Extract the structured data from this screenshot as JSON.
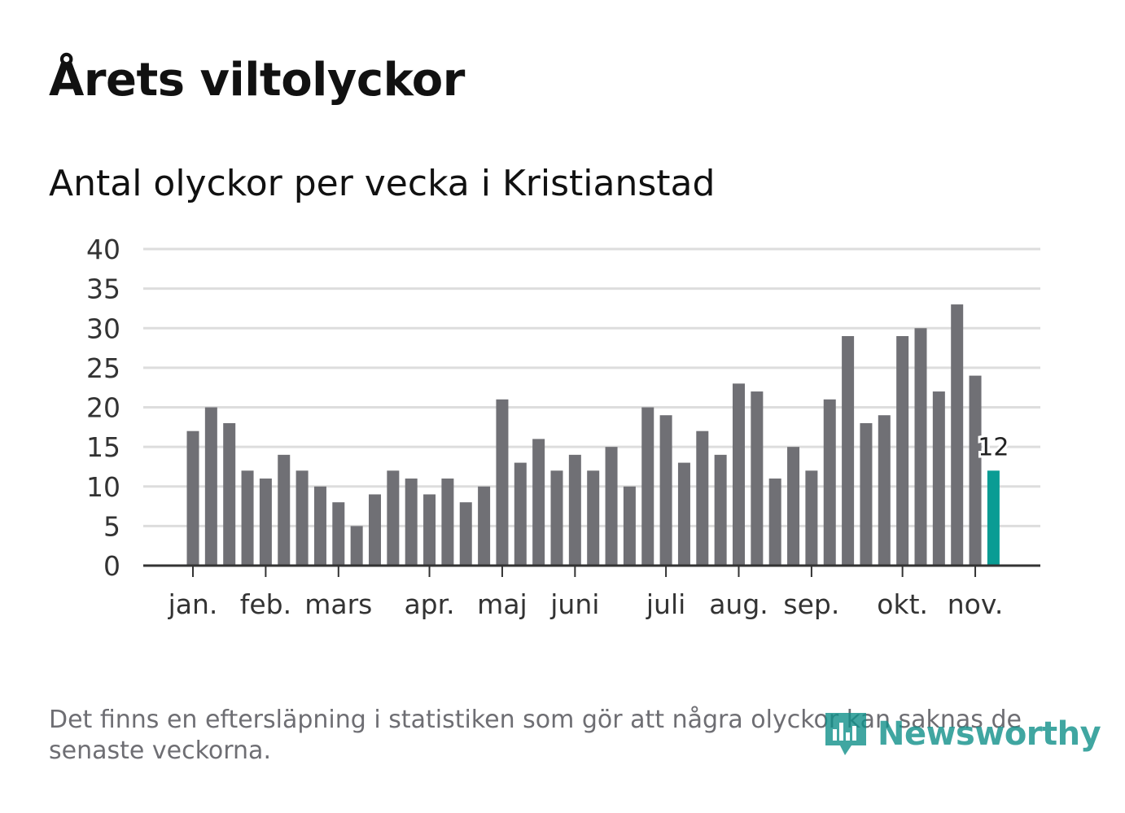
{
  "header": {
    "title": "Årets viltolyckor",
    "subtitle": "Antal olyckor per vecka i Kristianstad"
  },
  "footer": {
    "note": "Det finns en eftersläpning i statistiken som gör att några olyckor kan saknas de senaste veckorna.",
    "brand": "Newsworthy"
  },
  "colors": {
    "bar": "#707075",
    "highlight": "#0a9c94",
    "grid": "#dddddd",
    "axis": "#333333",
    "text": "#333333"
  },
  "chart_data": {
    "type": "bar",
    "title": "Antal olyckor per vecka i Kristianstad",
    "xlabel": "",
    "ylabel": "",
    "ylim": [
      0,
      40
    ],
    "yticks": [
      "0",
      "5",
      "10",
      "15",
      "20",
      "25",
      "30",
      "35",
      "40"
    ],
    "month_labels": [
      {
        "label": "jan.",
        "week": 1
      },
      {
        "label": "feb.",
        "week": 5
      },
      {
        "label": "mars",
        "week": 9
      },
      {
        "label": "apr.",
        "week": 14
      },
      {
        "label": "maj",
        "week": 18
      },
      {
        "label": "juni",
        "week": 22
      },
      {
        "label": "juli",
        "week": 27
      },
      {
        "label": "aug.",
        "week": 31
      },
      {
        "label": "sep.",
        "week": 35
      },
      {
        "label": "okt.",
        "week": 40
      },
      {
        "label": "nov.",
        "week": 44
      }
    ],
    "weeks": [
      1,
      2,
      3,
      4,
      5,
      6,
      7,
      8,
      9,
      10,
      11,
      12,
      13,
      14,
      15,
      16,
      17,
      18,
      19,
      20,
      21,
      22,
      23,
      24,
      25,
      26,
      27,
      28,
      29,
      30,
      31,
      32,
      33,
      34,
      35,
      36,
      37,
      38,
      39,
      40,
      41,
      42,
      43,
      44,
      45
    ],
    "values": [
      17,
      20,
      18,
      12,
      11,
      14,
      12,
      10,
      8,
      5,
      9,
      12,
      11,
      9,
      11,
      8,
      10,
      21,
      13,
      16,
      12,
      14,
      12,
      15,
      10,
      20,
      19,
      13,
      17,
      14,
      23,
      22,
      11,
      15,
      12,
      21,
      29,
      18,
      19,
      29,
      30,
      22,
      33,
      24,
      12
    ],
    "highlight_index": 44,
    "highlight_label": "12"
  }
}
